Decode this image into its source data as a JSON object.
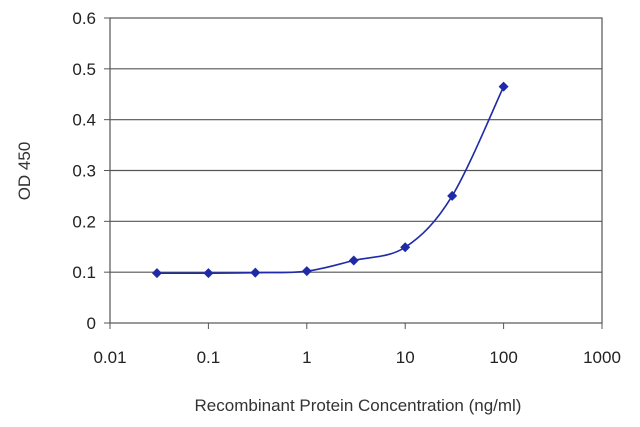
{
  "chart_data": {
    "type": "line",
    "xlabel": "Recombinant Protein Concentration (ng/ml)",
    "ylabel": "OD 450",
    "x_scale": "log",
    "xlim": [
      0.01,
      1000
    ],
    "ylim": [
      0,
      0.6
    ],
    "x_ticks": [
      "0.01",
      "0.1",
      "1",
      "10",
      "100",
      "1000"
    ],
    "y_ticks": [
      "0",
      "0.1",
      "0.2",
      "0.3",
      "0.4",
      "0.5",
      "0.6"
    ],
    "grid": "horizontal",
    "legend": "none",
    "series": [
      {
        "x": [
          0.03,
          0.1,
          0.3,
          1,
          3,
          10,
          30,
          100
        ],
        "y": [
          0.098,
          0.098,
          0.099,
          0.102,
          0.123,
          0.149,
          0.25,
          0.465
        ],
        "color": "#1f2aa8",
        "marker": "diamond",
        "smooth": true
      }
    ]
  }
}
